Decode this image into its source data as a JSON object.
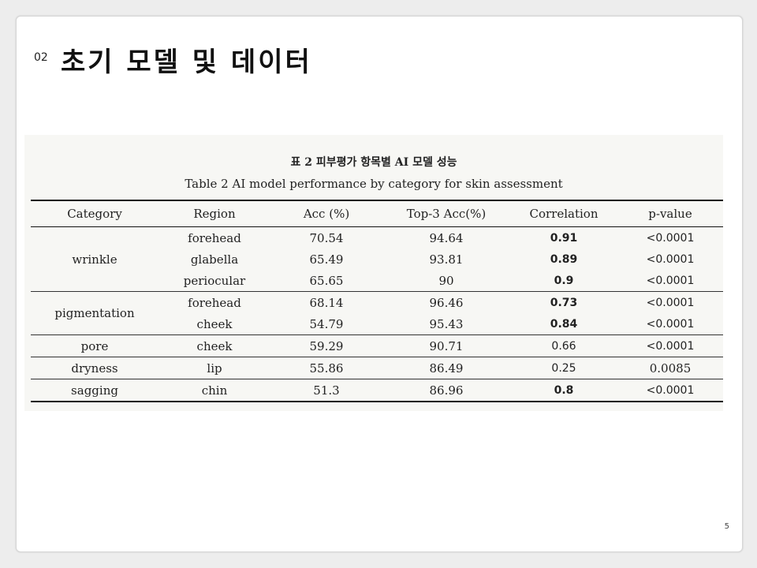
{
  "slide": {
    "section_number": "02",
    "title": "초기 모델 및 데이터",
    "page_number": "5"
  },
  "figure": {
    "caption_ko": "표 2 피부평가 항목별 AI 모델 성능",
    "caption_en": "Table 2 AI model performance by category for skin assessment",
    "headers": [
      "Category",
      "Region",
      "Acc (%)",
      "Top-3 Acc(%)",
      "Correlation",
      "p-value"
    ],
    "rows": [
      {
        "category": "wrinkle",
        "region": "forehead",
        "acc": "70.54",
        "top3": "94.64",
        "corr": "0.91",
        "p": "<0.0001"
      },
      {
        "category": "",
        "region": "glabella",
        "acc": "65.49",
        "top3": "93.81",
        "corr": "0.89",
        "p": "<0.0001"
      },
      {
        "category": "",
        "region": "periocular",
        "acc": "65.65",
        "top3": "90",
        "corr": "0.9",
        "p": "<0.0001"
      },
      {
        "category": "pigmentation",
        "region": "forehead",
        "acc": "68.14",
        "top3": "96.46",
        "corr": "0.73",
        "p": "<0.0001"
      },
      {
        "category": "",
        "region": "cheek",
        "acc": "54.79",
        "top3": "95.43",
        "corr": "0.84",
        "p": "<0.0001"
      },
      {
        "category": "pore",
        "region": "cheek",
        "acc": "59.29",
        "top3": "90.71",
        "corr": "0.66",
        "p": "<0.0001"
      },
      {
        "category": "dryness",
        "region": "lip",
        "acc": "55.86",
        "top3": "86.49",
        "corr": "0.25",
        "p": "0.0085"
      },
      {
        "category": "sagging",
        "region": "chin",
        "acc": "51.3",
        "top3": "86.96",
        "corr": "0.8",
        "p": "<0.0001"
      }
    ]
  }
}
